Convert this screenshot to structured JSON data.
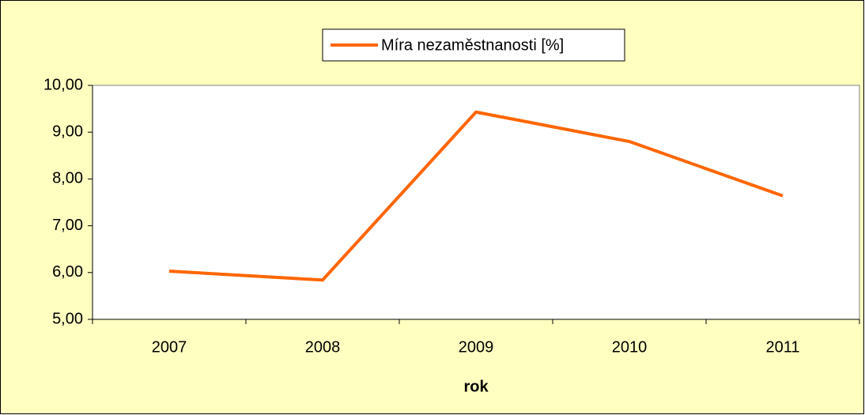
{
  "chart_data": {
    "type": "line",
    "x_label": "rok",
    "categories": [
      "2007",
      "2008",
      "2009",
      "2010",
      "2011"
    ],
    "series": [
      {
        "name": "Míra nezaměstnanosti [%]",
        "color": "#ff6600",
        "values": [
          6.03,
          5.84,
          9.43,
          8.8,
          7.64
        ]
      }
    ],
    "ylim": [
      5,
      10
    ],
    "yticks": [
      {
        "value": 5,
        "label": "5,00"
      },
      {
        "value": 6,
        "label": "6,00"
      },
      {
        "value": 7,
        "label": "7,00"
      },
      {
        "value": 8,
        "label": "8,00"
      },
      {
        "value": 9,
        "label": "9,00"
      },
      {
        "value": 10,
        "label": "10,00"
      }
    ],
    "legend": "top",
    "background": "#ffffc0",
    "plot_background": "#ffffff"
  }
}
